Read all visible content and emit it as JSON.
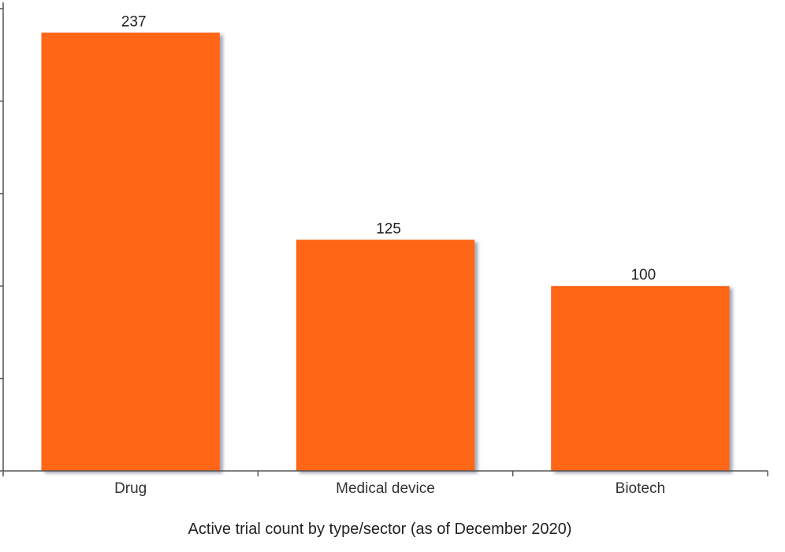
{
  "chart_data": {
    "type": "bar",
    "categories": [
      "Drug",
      "Medical device",
      "Biotech"
    ],
    "values": [
      237,
      125,
      100
    ],
    "data_labels": [
      "237",
      "125",
      "100"
    ],
    "title": "",
    "xlabel": "Active trial count by type/sector (as of December 2020)",
    "ylabel": "",
    "ylim": [
      0,
      250
    ],
    "y_tick_values": [
      0,
      50,
      100,
      150,
      200,
      250
    ],
    "y_tick_labels_visible": false,
    "grid": false,
    "legend": "none",
    "bar_color": "#ff6619",
    "shadow_color": "#5a5a7a"
  }
}
